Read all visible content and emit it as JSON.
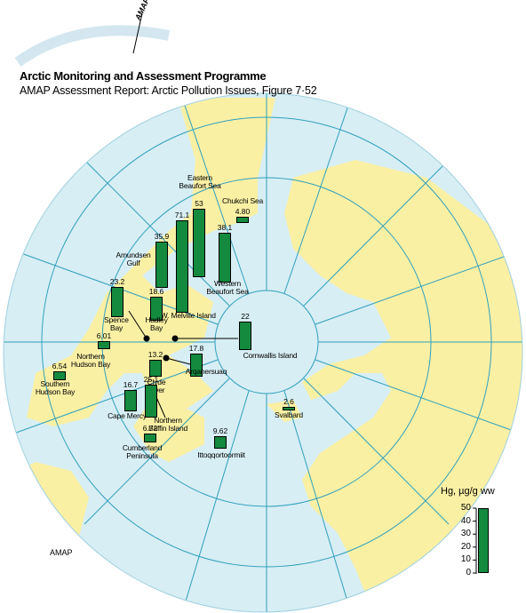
{
  "header": {
    "logo": "AMAP",
    "title": "Arctic Monitoring and Assessment Programme",
    "subtitle": "AMAP Assessment Report: Arctic Pollution Issues, Figure 7·52"
  },
  "footer": "AMAP",
  "map": {
    "bar_color": "#138a3e",
    "legend": {
      "title": "Hg, µg/g ww",
      "lim": [
        0,
        50
      ],
      "ticks": [
        0,
        10,
        20,
        30,
        40,
        50
      ]
    },
    "sites": [
      {
        "label": "Eastern Beaufort Sea",
        "value": 53
      },
      {
        "label": "Chukchi Sea",
        "value": 4.8,
        "value_label": "4.80"
      },
      {
        "label": "Western Beaufort Sea",
        "value": 38.1
      },
      {
        "label": "S.W. Melville Island",
        "value": 71.1
      },
      {
        "label": "Amundsen Gulf",
        "value": 35.9
      },
      {
        "label": "Hadley Bay",
        "value": 18.6
      },
      {
        "label": "Spence Bay",
        "value": 23.2
      },
      {
        "label": "Cornwallis Island",
        "value": 22
      },
      {
        "label": "Northern Hudson Bay",
        "value": 6.01
      },
      {
        "label": "Southern Hudson Bay",
        "value": 6.54
      },
      {
        "label": "Clyde River",
        "value": 13.2
      },
      {
        "label": "Arqanersuaq",
        "value": 17.8
      },
      {
        "label": "Cape Mercy",
        "value": 16.7
      },
      {
        "label": "Northern Baffin Island",
        "value": 25.1
      },
      {
        "label": "Cumberland Peninsula",
        "value": 6.72
      },
      {
        "label": "Ittoqqortoormiit",
        "value": 9.62
      },
      {
        "label": "Svalbard",
        "value": 2.6
      }
    ]
  }
}
